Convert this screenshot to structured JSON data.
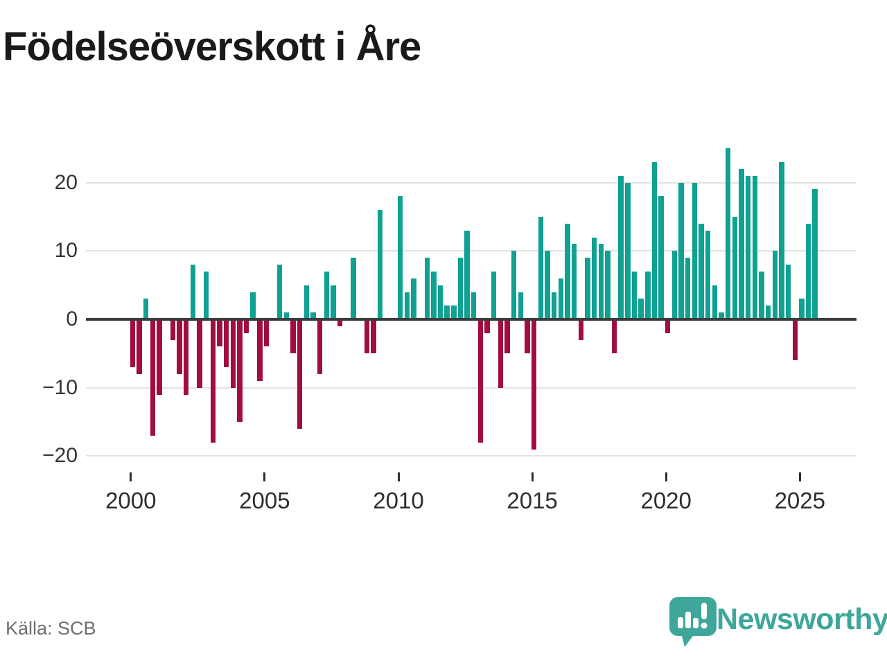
{
  "page": {
    "title": "Födelseöverskott i Åre"
  },
  "footer": {
    "source": "Källa: SCB",
    "brand": "Newsworthy",
    "brand_logo_icon": "speech-bubble-bar-chart-exclamation",
    "brand_color": "#3ea69b"
  },
  "chart_data": {
    "type": "bar",
    "title": "Födelseöverskott i Åre",
    "xlabel": "",
    "ylabel": "",
    "frequency": "quarterly",
    "start_period": "2000-Q1",
    "end_period": "2025-Q3",
    "grid": "horizontal",
    "legend": "none",
    "y_ticks": [
      20,
      10,
      0,
      -10,
      -20
    ],
    "ylim": [
      -22,
      27
    ],
    "x_tick_years": [
      2000,
      2005,
      2010,
      2015,
      2020,
      2025
    ],
    "positive_color": "#0fa192",
    "negative_color": "#a10d41",
    "axis_line_color": "#3c3c3c",
    "series_by_year": [
      {
        "year": 2000,
        "q": [
          -7,
          -8,
          3,
          -17
        ]
      },
      {
        "year": 2001,
        "q": [
          -11,
          0,
          -3,
          -8
        ]
      },
      {
        "year": 2002,
        "q": [
          -11,
          8,
          -10,
          7
        ]
      },
      {
        "year": 2003,
        "q": [
          -18,
          -4,
          -7,
          -10
        ]
      },
      {
        "year": 2004,
        "q": [
          -15,
          -2,
          4,
          -9
        ]
      },
      {
        "year": 2005,
        "q": [
          -4,
          0,
          8,
          1
        ]
      },
      {
        "year": 2006,
        "q": [
          -5,
          -16,
          5,
          1
        ]
      },
      {
        "year": 2007,
        "q": [
          -8,
          7,
          5,
          -1
        ]
      },
      {
        "year": 2008,
        "q": [
          0,
          9,
          0,
          -5
        ]
      },
      {
        "year": 2009,
        "q": [
          -5,
          16,
          0,
          0
        ]
      },
      {
        "year": 2010,
        "q": [
          18,
          4,
          6,
          0
        ]
      },
      {
        "year": 2011,
        "q": [
          9,
          7,
          5,
          2
        ]
      },
      {
        "year": 2012,
        "q": [
          2,
          9,
          13,
          4
        ]
      },
      {
        "year": 2013,
        "q": [
          -18,
          -2,
          7,
          -10
        ]
      },
      {
        "year": 2014,
        "q": [
          -5,
          10,
          4,
          -5
        ]
      },
      {
        "year": 2015,
        "q": [
          -19,
          15,
          10,
          4
        ]
      },
      {
        "year": 2016,
        "q": [
          6,
          14,
          11,
          -3
        ]
      },
      {
        "year": 2017,
        "q": [
          9,
          12,
          11,
          10
        ]
      },
      {
        "year": 2018,
        "q": [
          -5,
          21,
          20,
          7
        ]
      },
      {
        "year": 2019,
        "q": [
          3,
          7,
          23,
          18
        ]
      },
      {
        "year": 2020,
        "q": [
          -2,
          10,
          20,
          9
        ]
      },
      {
        "year": 2021,
        "q": [
          20,
          14,
          13,
          5
        ]
      },
      {
        "year": 2022,
        "q": [
          1,
          25,
          15,
          22
        ]
      },
      {
        "year": 2023,
        "q": [
          21,
          21,
          7,
          2
        ]
      },
      {
        "year": 2024,
        "q": [
          10,
          23,
          8,
          -6
        ]
      },
      {
        "year": 2025,
        "q": [
          3,
          14,
          19
        ]
      }
    ]
  }
}
